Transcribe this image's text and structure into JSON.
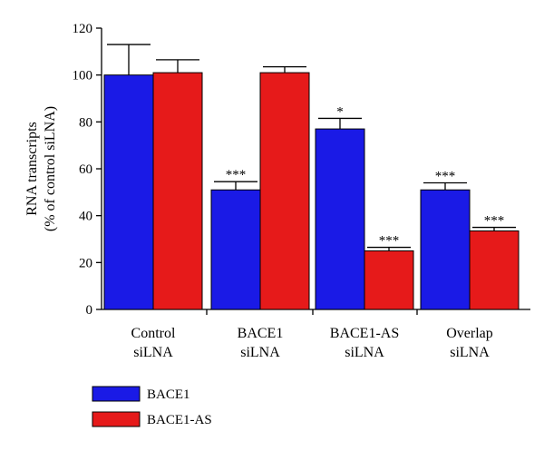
{
  "chart_data": {
    "type": "bar",
    "ylabel_lines": [
      "RNA transcripts",
      "(% of control siLNA)"
    ],
    "xlabel": "",
    "ylim": [
      0,
      120
    ],
    "yticks": [
      0,
      20,
      40,
      60,
      80,
      100,
      120
    ],
    "categories": [
      [
        "Control",
        "siLNA"
      ],
      [
        "BACE1",
        "siLNA"
      ],
      [
        "BACE1-AS",
        "siLNA"
      ],
      [
        "Overlap",
        "siLNA"
      ]
    ],
    "series": [
      {
        "name": "BACE1",
        "color": "#1a1ae6",
        "values": [
          100,
          51,
          77,
          51
        ],
        "errors": [
          13,
          3.5,
          4.5,
          3
        ],
        "significance": [
          "",
          "***",
          "*",
          "***"
        ]
      },
      {
        "name": "BACE1-AS",
        "color": "#e61a1a",
        "values": [
          101,
          101,
          25,
          33.5
        ],
        "errors": [
          5.5,
          2.5,
          1.5,
          1.5
        ],
        "significance": [
          "",
          "",
          "***",
          "***"
        ]
      }
    ],
    "legend_position": "bottom-left",
    "grid": false
  }
}
